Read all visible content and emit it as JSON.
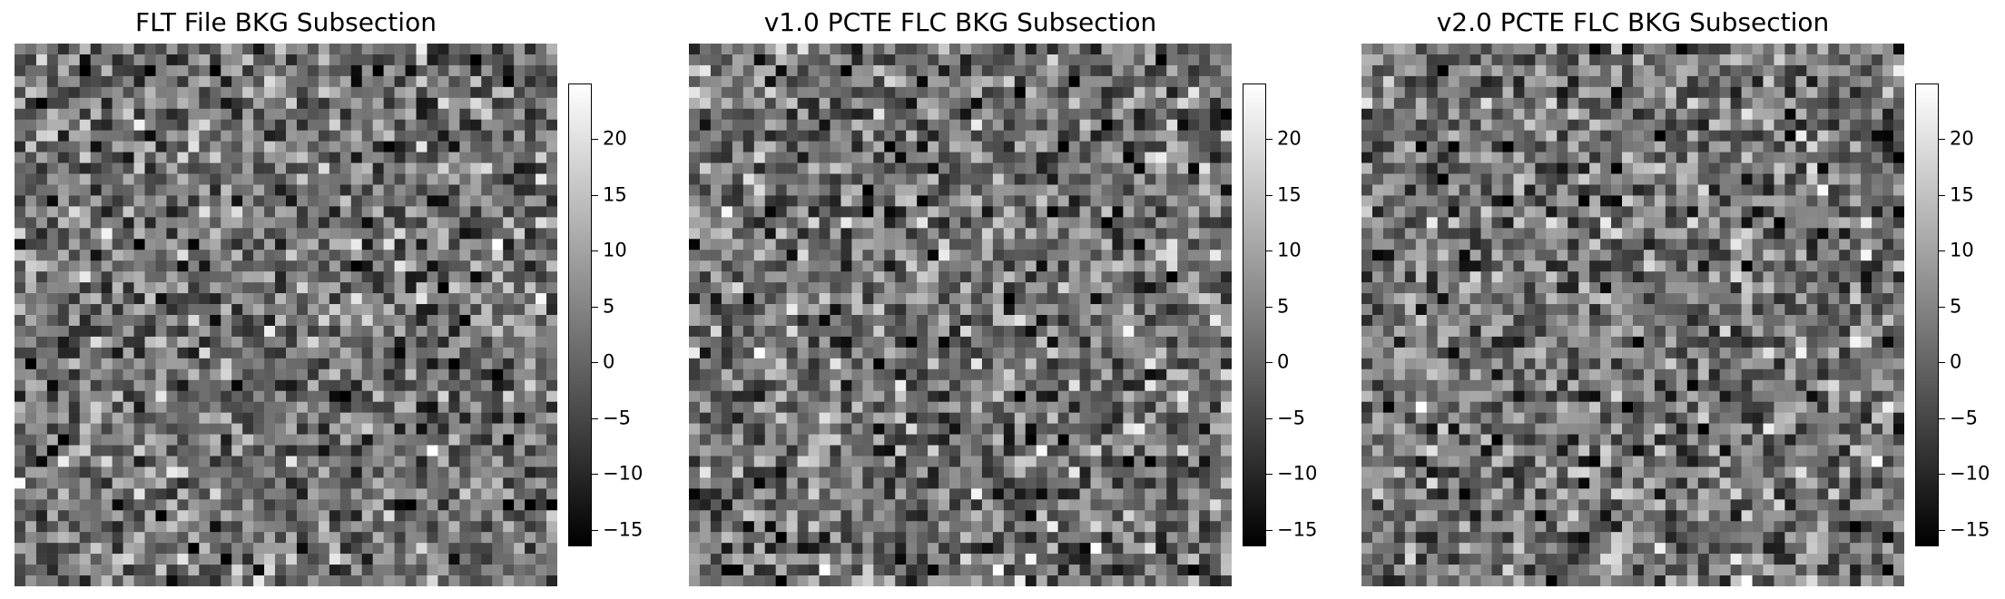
{
  "chart_data": [
    {
      "type": "heatmap",
      "title": "FLT File BKG Subsection",
      "grid_size": [
        50,
        50
      ],
      "colormap": "gray",
      "colorbar": {
        "ticks": [
          -15,
          -10,
          -5,
          0,
          5,
          10,
          15,
          20
        ],
        "range": [
          -16.5,
          25
        ],
        "tick_labels": [
          "−15",
          "−10",
          "−5",
          "0",
          "5",
          "10",
          "15",
          "20"
        ]
      },
      "axes_visible": false,
      "seed": 11
    },
    {
      "type": "heatmap",
      "title": "v1.0 PCTE FLC BKG Subsection",
      "grid_size": [
        50,
        50
      ],
      "colormap": "gray",
      "colorbar": {
        "ticks": [
          -15,
          -10,
          -5,
          0,
          5,
          10,
          15,
          20
        ],
        "range": [
          -16.5,
          25
        ],
        "tick_labels": [
          "−15",
          "−10",
          "−5",
          "0",
          "5",
          "10",
          "15",
          "20"
        ]
      },
      "axes_visible": false,
      "seed": 23
    },
    {
      "type": "heatmap",
      "title": "v2.0 PCTE FLC BKG Subsection",
      "grid_size": [
        50,
        50
      ],
      "colormap": "gray",
      "colorbar": {
        "ticks": [
          -15,
          -10,
          -5,
          0,
          5,
          10,
          15,
          20
        ],
        "range": [
          -16.5,
          25
        ],
        "tick_labels": [
          "−15",
          "−10",
          "−5",
          "0",
          "5",
          "10",
          "15",
          "20"
        ]
      },
      "axes_visible": false,
      "seed": 37
    }
  ]
}
